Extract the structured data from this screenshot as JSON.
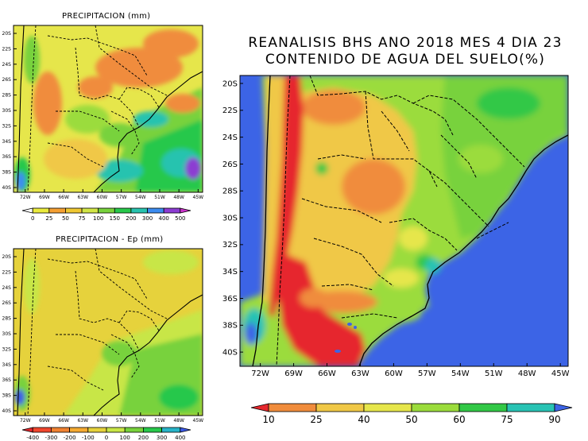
{
  "small_map_1": {
    "title": "PRECIPITACION (mm)",
    "lat_labels": [
      "20S",
      "22S",
      "24S",
      "26S",
      "28S",
      "30S",
      "32S",
      "34S",
      "36S",
      "38S",
      "40S"
    ],
    "lon_labels": [
      "72W",
      "69W",
      "66W",
      "63W",
      "60W",
      "57W",
      "54W",
      "51W",
      "48W",
      "45W"
    ],
    "colorbar_labels": [
      "0",
      "25",
      "50",
      "75",
      "100",
      "150",
      "200",
      "300",
      "400",
      "500"
    ],
    "colorbar_colors": [
      "#ffffff",
      "#ebeb3c",
      "#f5a032",
      "#f0c832",
      "#d2e646",
      "#78d23c",
      "#28c84b",
      "#28c3af",
      "#3c8cf0",
      "#8c3cd2",
      "#c832c8"
    ]
  },
  "small_map_2": {
    "title": "PRECIPITACION - Ep (mm)",
    "lat_labels": [
      "20S",
      "22S",
      "24S",
      "26S",
      "28S",
      "30S",
      "32S",
      "34S",
      "36S",
      "38S",
      "40S"
    ],
    "lon_labels": [
      "72W",
      "69W",
      "66W",
      "63W",
      "60W",
      "57W",
      "54W",
      "51W",
      "48W",
      "45W"
    ],
    "colorbar_labels": [
      "-400",
      "-300",
      "-200",
      "-100",
      "0",
      "100",
      "200",
      "300",
      "400"
    ],
    "colorbar_colors": [
      "#e6282d",
      "#f0462d",
      "#f08232",
      "#f5aa32",
      "#e6d23c",
      "#c8e646",
      "#78d23c",
      "#28c84b",
      "#28b4c8",
      "#3c5ae6"
    ]
  },
  "main_map": {
    "title_line1": "REANALISIS BHS ANO 2018 MES 4 DIA 23",
    "title_line2": "CONTENIDO DE AGUA DEL SUELO(%)",
    "lat_labels": [
      "20S",
      "22S",
      "24S",
      "26S",
      "28S",
      "30S",
      "32S",
      "34S",
      "36S",
      "38S",
      "40S"
    ],
    "lon_labels": [
      "72W",
      "69W",
      "66W",
      "63W",
      "60W",
      "57W",
      "54W",
      "51W",
      "48W",
      "45W"
    ],
    "colorbar_labels": [
      "10",
      "25",
      "40",
      "50",
      "60",
      "75",
      "90"
    ],
    "colorbar_colors": [
      "#e6282d",
      "#f08c3c",
      "#f0c846",
      "#e6e64b",
      "#9bdc3c",
      "#32c846",
      "#28c3b4",
      "#3c64e6"
    ]
  }
}
